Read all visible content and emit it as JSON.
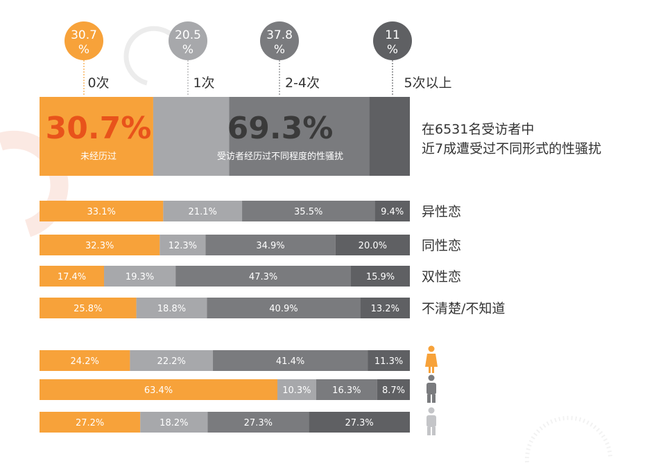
{
  "colors": {
    "c0": "#f7a23a",
    "c1": "#a7a8ab",
    "c2": "#7a7b7e",
    "c3": "#5f6063",
    "label_text": "#333333",
    "bar_text": "#ffffff"
  },
  "chart_data": {
    "type": "stacked-bar",
    "categories": [
      "0次",
      "1次",
      "2-4次",
      "5次以上"
    ],
    "overall": {
      "circles": [
        "30.7\n%",
        "20.5\n%",
        "37.8\n%",
        "11\n%"
      ],
      "values": [
        30.7,
        20.5,
        37.8,
        11
      ],
      "big_left": "30.7%",
      "big_left_sub": "未经历过",
      "big_right": "69.3%",
      "big_right_sub": "受访者经历过不同程度的性骚扰",
      "note_line1": "在6531名受访者中",
      "note_line2": "近7成遭受过不同形式的性骚扰"
    },
    "orientation_rows": [
      {
        "label": "异性恋",
        "values": [
          33.1,
          21.1,
          35.5,
          9.4
        ],
        "texts": [
          "33.1%",
          "21.1%",
          "35.5%",
          "9.4%"
        ]
      },
      {
        "label": "同性恋",
        "values": [
          32.3,
          12.3,
          34.9,
          20.0
        ],
        "texts": [
          "32.3%",
          "12.3%",
          "34.9%",
          "20.0%"
        ]
      },
      {
        "label": "双性恋",
        "values": [
          17.4,
          19.3,
          47.3,
          15.9
        ],
        "texts": [
          "17.4%",
          "19.3%",
          "47.3%",
          "15.9%"
        ]
      },
      {
        "label": "不清楚/不知道",
        "values": [
          25.8,
          18.8,
          40.9,
          13.2
        ],
        "texts": [
          "25.8%",
          "18.8%",
          "40.9%",
          "13.2%"
        ]
      }
    ],
    "gender_rows": [
      {
        "icon": "female-icon",
        "values": [
          24.2,
          22.2,
          41.4,
          11.3
        ],
        "texts": [
          "24.2%",
          "22.2%",
          "41.4%",
          "11.3%"
        ]
      },
      {
        "icon": "male-icon",
        "values": [
          63.4,
          10.3,
          16.3,
          8.7
        ],
        "texts": [
          "63.4%",
          "10.3%",
          "16.3%",
          "8.7%"
        ]
      },
      {
        "icon": "other-gender-icon",
        "values": [
          27.2,
          18.2,
          27.3,
          27.3
        ],
        "texts": [
          "27.2%",
          "18.2%",
          "27.3%",
          "27.3%"
        ]
      }
    ]
  }
}
